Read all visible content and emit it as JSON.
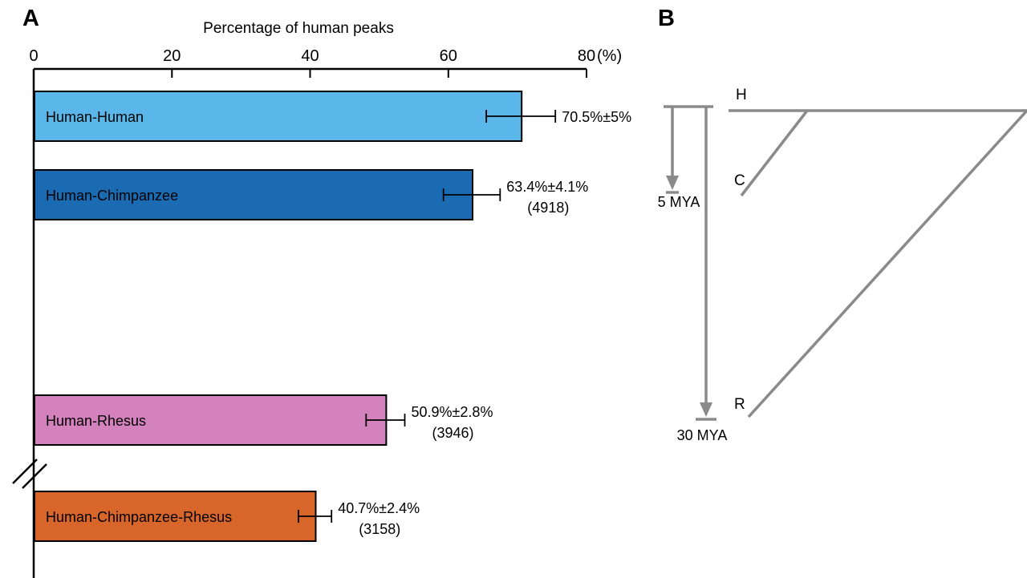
{
  "chart_data": {
    "type": "bar",
    "orientation": "horizontal",
    "title": "Percentage of human peaks",
    "categories": [
      "Human-Human",
      "Human-Chimpanzee",
      "Human-Rhesus",
      "Human-Chimpanzee-Rhesus"
    ],
    "values": [
      70.5,
      63.4,
      50.9,
      40.7
    ],
    "errors": [
      5.0,
      4.1,
      2.8,
      2.4
    ],
    "counts": [
      null,
      4918,
      3946,
      3158
    ],
    "xlim": [
      0,
      80
    ],
    "xticks": [
      0,
      20,
      40,
      60,
      80
    ],
    "x_unit": "%",
    "axis_break_before_last_bar": true
  },
  "panelA": {
    "label": "A",
    "title": "Percentage of human peaks",
    "unit_label": "(%)",
    "tick_labels": [
      "0",
      "20",
      "40",
      "60",
      "80"
    ],
    "bars": [
      {
        "label": "Human-Human",
        "value": 70.5,
        "error": 5.0,
        "value_label": "70.5%±5%",
        "count_label": "",
        "color": "#5bb6e9"
      },
      {
        "label": "Human-Chimpanzee",
        "value": 63.4,
        "error": 4.1,
        "value_label": "63.4%±4.1%",
        "count_label": "(4918)",
        "color": "#1a6bb2"
      },
      {
        "label": "Human-Rhesus",
        "value": 50.9,
        "error": 2.8,
        "value_label": "50.9%±2.8%",
        "count_label": "(3946)",
        "color": "#d482be"
      },
      {
        "label": "Human-Chimpanzee-Rhesus",
        "value": 40.7,
        "error": 2.4,
        "value_label": "40.7%±2.4%",
        "count_label": "(3158)",
        "color": "#d8662b"
      }
    ]
  },
  "panelB": {
    "label": "B",
    "taxa_labels": [
      "H",
      "C",
      "R"
    ],
    "time_labels": [
      "5 MYA",
      "30 MYA"
    ],
    "line_color": "#8a8a8a"
  }
}
